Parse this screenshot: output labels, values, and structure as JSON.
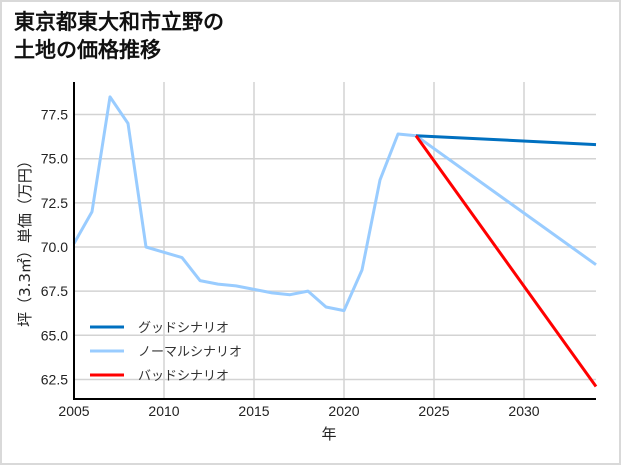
{
  "chart_data": {
    "type": "line",
    "title": "東京都東大和市立野の\n土地の価格推移",
    "title_lines": [
      "東京都東大和市立野の",
      "土地の価格推移"
    ],
    "xlabel": "年",
    "ylabel": "坪（3.3㎡）単価（万円）",
    "xlim": [
      2005,
      2034
    ],
    "ylim": [
      61.2,
      79.3
    ],
    "xticks": [
      2005,
      2010,
      2015,
      2020,
      2025,
      2030
    ],
    "yticks": [
      62.5,
      65.0,
      67.5,
      70.0,
      72.5,
      75.0,
      77.5
    ],
    "ytick_labels": [
      "62.5",
      "65.0",
      "67.5",
      "70.0",
      "72.5",
      "75.0",
      "77.5"
    ],
    "grid": true,
    "legend_position": "lower left",
    "series": [
      {
        "name": "グッドシナリオ",
        "color": "#0070c0",
        "x": [
          2024,
          2034
        ],
        "y": [
          76.3,
          75.8
        ]
      },
      {
        "name": "ノーマルシナリオ",
        "color": "#99ccff",
        "x": [
          2005,
          2006,
          2007,
          2008,
          2009,
          2010,
          2011,
          2012,
          2013,
          2014,
          2015,
          2016,
          2017,
          2018,
          2019,
          2020,
          2021,
          2022,
          2023,
          2024,
          2034
        ],
        "y": [
          70.2,
          72.0,
          78.5,
          77.0,
          70.0,
          69.7,
          69.4,
          68.1,
          67.9,
          67.8,
          67.6,
          67.4,
          67.3,
          67.5,
          66.6,
          66.4,
          68.7,
          73.8,
          76.4,
          76.3,
          69.0
        ]
      },
      {
        "name": "バッドシナリオ",
        "color": "#ff0000",
        "x": [
          2024,
          2034
        ],
        "y": [
          76.3,
          62.1
        ]
      }
    ]
  }
}
